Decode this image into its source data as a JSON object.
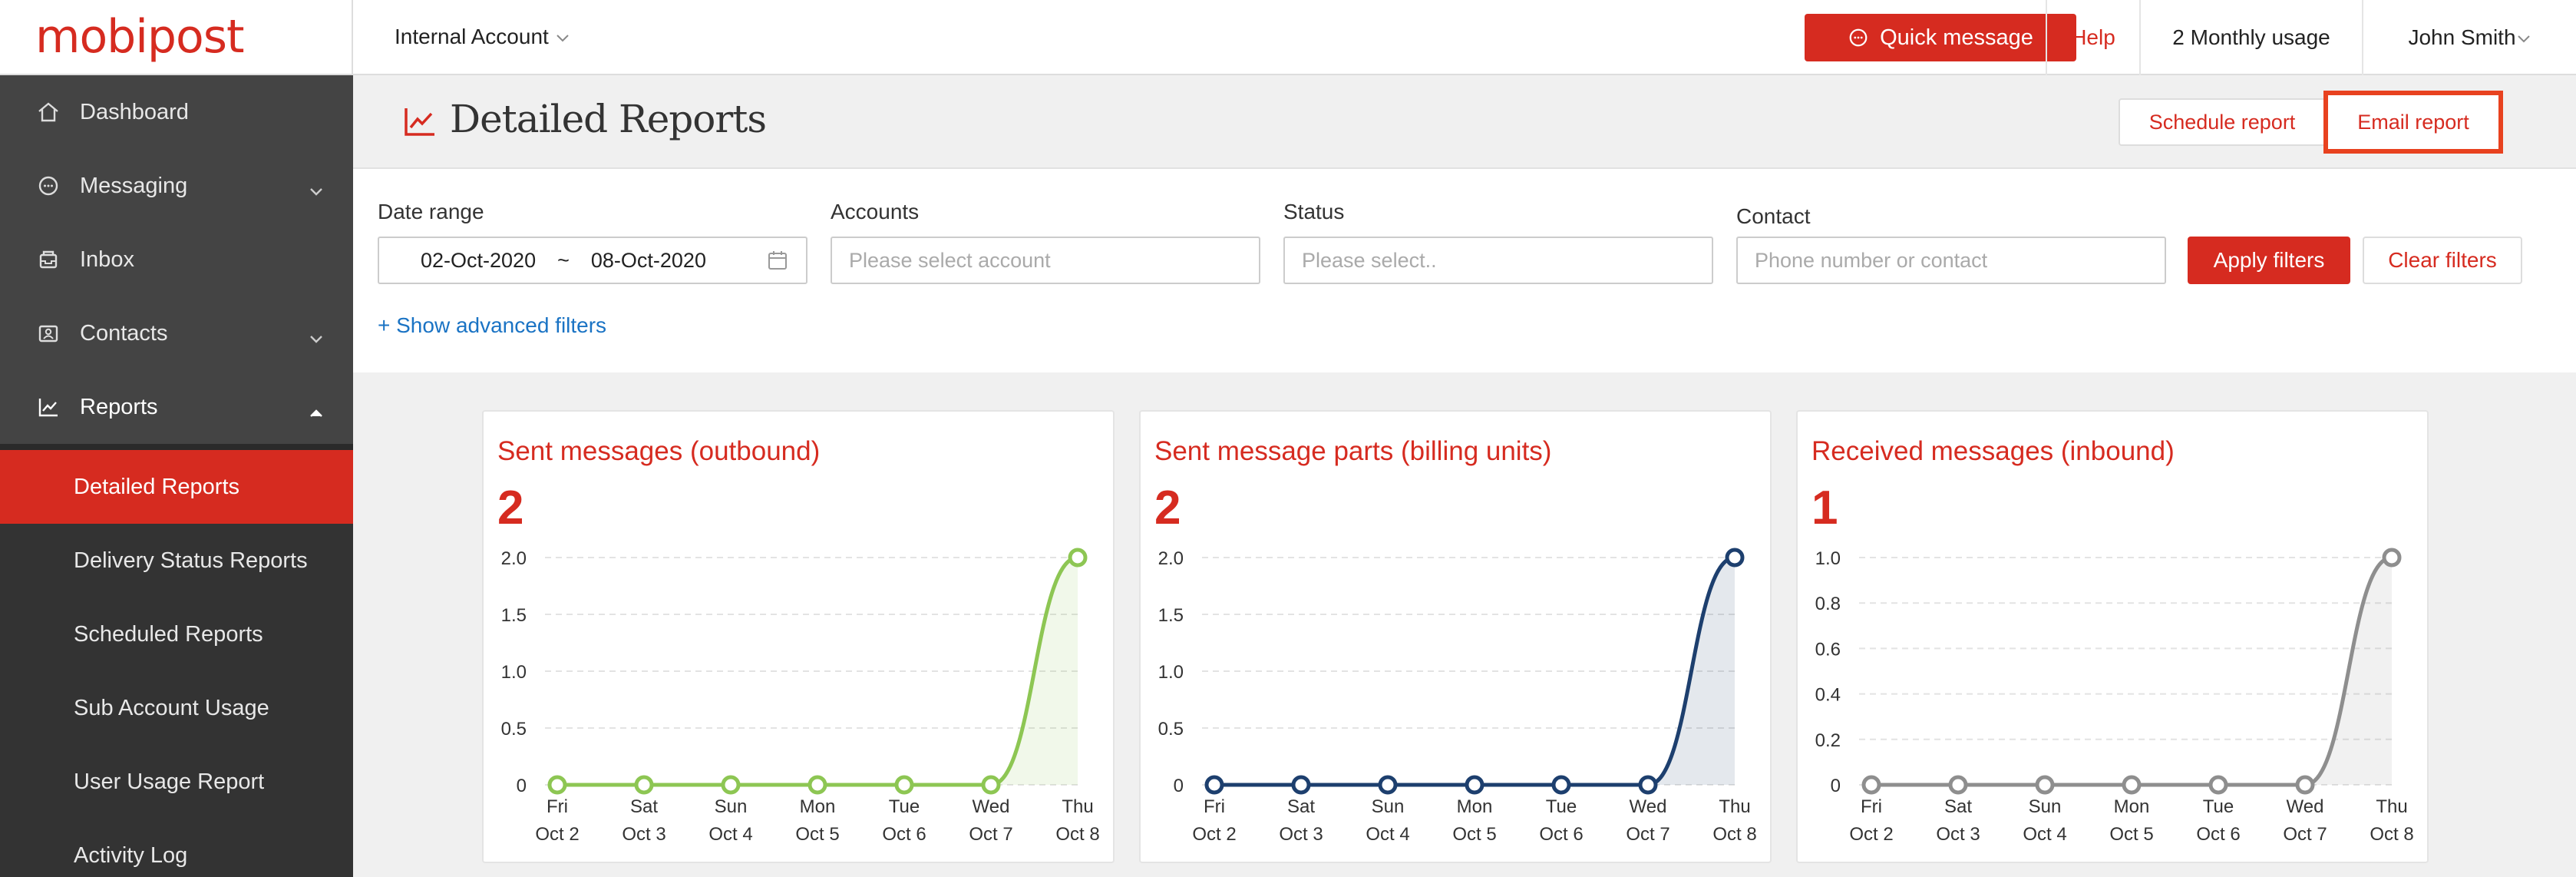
{
  "brand": {
    "logo_text": "mobipost"
  },
  "topbar": {
    "account": "Internal Account",
    "quick_message": "Quick message",
    "help": "Help",
    "usage": "2 Monthly usage",
    "user": "John Smith"
  },
  "sidebar": {
    "items": [
      {
        "label": "Dashboard",
        "icon": "home-icon"
      },
      {
        "label": "Messaging",
        "icon": "chat-icon"
      },
      {
        "label": "Inbox",
        "icon": "inbox-icon"
      },
      {
        "label": "Contacts",
        "icon": "contacts-icon"
      },
      {
        "label": "Reports",
        "icon": "chart-icon"
      }
    ],
    "subitems": [
      {
        "label": "Detailed Reports"
      },
      {
        "label": "Delivery Status Reports"
      },
      {
        "label": "Scheduled Reports"
      },
      {
        "label": "Sub Account Usage"
      },
      {
        "label": "User Usage Report"
      },
      {
        "label": "Activity Log"
      }
    ]
  },
  "header": {
    "title": "Detailed Reports",
    "schedule_report": "Schedule report",
    "email_report": "Email report"
  },
  "filters": {
    "date_label": "Date range",
    "date_from": "02-Oct-2020",
    "date_sep": "~",
    "date_to": "08-Oct-2020",
    "accounts_label": "Accounts",
    "accounts_placeholder": "Please select account",
    "status_label": "Status",
    "status_placeholder": "Please select..",
    "contact_label": "Contact",
    "contact_placeholder": "Phone number or contact",
    "apply": "Apply filters",
    "clear": "Clear filters",
    "advanced": "+ Show advanced filters"
  },
  "colors": {
    "accent": "#d62b20",
    "link": "#1a73c4"
  },
  "chart_data": [
    {
      "type": "line",
      "title": "Sent messages (outbound)",
      "total": "2",
      "color": "#8dc653",
      "categories": [
        "Fri|Oct 2",
        "Sat|Oct 3",
        "Sun|Oct 4",
        "Mon|Oct 5",
        "Tue|Oct 6",
        "Wed|Oct 7",
        "Thu|Oct 8"
      ],
      "values": [
        0,
        0,
        0,
        0,
        0,
        0,
        2
      ],
      "ylim": [
        0,
        2
      ],
      "yticks": [
        "0",
        "0.5",
        "1.0",
        "1.5",
        "2.0"
      ],
      "grid": true
    },
    {
      "type": "line",
      "title": "Sent message parts (billing units)",
      "total": "2",
      "color": "#1d3f6e",
      "categories": [
        "Fri|Oct 2",
        "Sat|Oct 3",
        "Sun|Oct 4",
        "Mon|Oct 5",
        "Tue|Oct 6",
        "Wed|Oct 7",
        "Thu|Oct 8"
      ],
      "values": [
        0,
        0,
        0,
        0,
        0,
        0,
        2
      ],
      "ylim": [
        0,
        2
      ],
      "yticks": [
        "0",
        "0.5",
        "1.0",
        "1.5",
        "2.0"
      ],
      "grid": true
    },
    {
      "type": "line",
      "title": "Received messages (inbound)",
      "total": "1",
      "color": "#8e8e8e",
      "categories": [
        "Fri|Oct 2",
        "Sat|Oct 3",
        "Sun|Oct 4",
        "Mon|Oct 5",
        "Tue|Oct 6",
        "Wed|Oct 7",
        "Thu|Oct 8"
      ],
      "values": [
        0,
        0,
        0,
        0,
        0,
        0,
        1
      ],
      "ylim": [
        0,
        1
      ],
      "yticks": [
        "0",
        "0.2",
        "0.4",
        "0.6",
        "0.8",
        "1.0"
      ],
      "grid": true
    }
  ]
}
